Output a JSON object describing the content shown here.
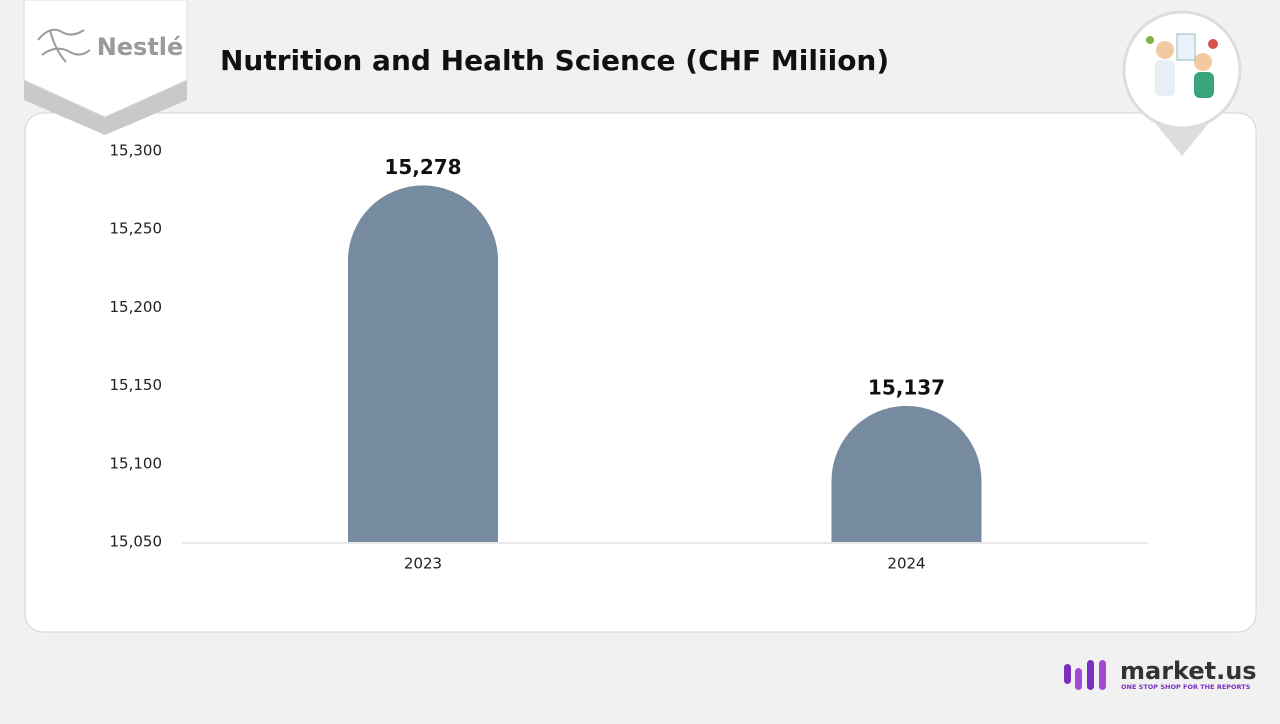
{
  "chart_data": {
    "type": "bar",
    "title": "Nutrition and Health Science (CHF Miliion)",
    "categories": [
      "2023",
      "2024"
    ],
    "values": [
      15278,
      15137
    ],
    "value_labels": [
      "15,278",
      "15,137"
    ],
    "color": "#778ba0",
    "ylim": [
      15050,
      15300
    ],
    "yticks": [
      {
        "value": 15050,
        "label": "15,050"
      },
      {
        "value": 15100,
        "label": "15,100"
      },
      {
        "value": 15150,
        "label": "15,150"
      },
      {
        "value": 15200,
        "label": "15,200"
      },
      {
        "value": 15250,
        "label": "15,250"
      },
      {
        "value": 15300,
        "label": "15,300"
      }
    ],
    "grid": false
  },
  "logos": {
    "company": "Nestlé",
    "footer": "market.us",
    "tagline": "ONE STOP SHOP FOR THE REPORTS"
  }
}
